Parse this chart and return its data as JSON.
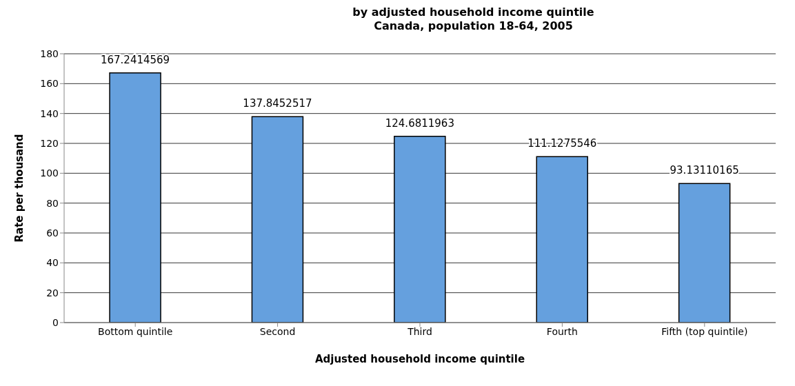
{
  "chart_data": {
    "type": "bar",
    "title": "by adjusted household income quintile\nCanada, population 18-64, 2005",
    "xlabel": "Adjusted household income quintile",
    "ylabel": "Rate per thousand",
    "categories": [
      "Bottom quintile",
      "Second",
      "Third",
      "Fourth",
      "Fifth (top quintile)"
    ],
    "values": [
      167.2414569,
      137.8452517,
      124.6811963,
      111.1275546,
      93.13110165
    ],
    "color": "#65a0de",
    "ylim": [
      0,
      180
    ],
    "yticks": [
      0,
      20,
      40,
      60,
      80,
      100,
      120,
      140,
      160,
      180
    ],
    "grid": "y",
    "data_labels": true
  }
}
